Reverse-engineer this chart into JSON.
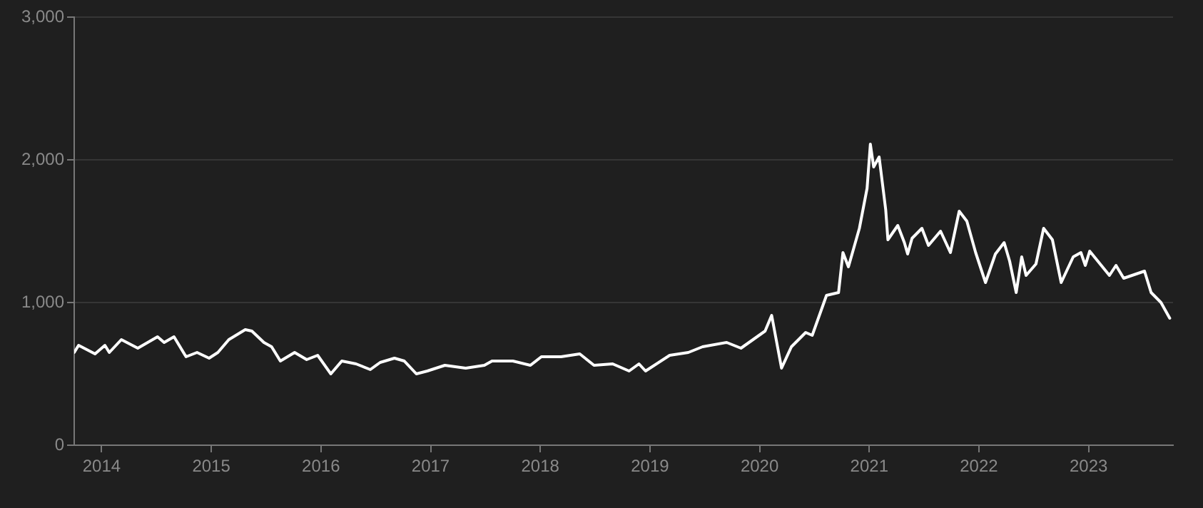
{
  "chart_data": {
    "type": "line",
    "grid": "y",
    "legend": false,
    "marker": "none",
    "line_style": "solid",
    "xlim": [
      2013.75,
      2023.77
    ],
    "xticks": [
      2014,
      2015,
      2016,
      2017,
      2018,
      2019,
      2020,
      2021,
      2022,
      2023
    ],
    "ylim": [
      0,
      3000
    ],
    "yticks": [
      {
        "value": 0,
        "label": "0"
      },
      {
        "value": 1000,
        "label": "1,000"
      },
      {
        "value": 2000,
        "label": "2,000"
      },
      {
        "value": 3000,
        "label": "3,000"
      }
    ],
    "series": [
      {
        "color": "#ffffff",
        "x": [
          2013.75,
          2013.79,
          2013.94,
          2014.03,
          2014.07,
          2014.18,
          2014.33,
          2014.51,
          2014.57,
          2014.66,
          2014.77,
          2014.87,
          2014.98,
          2015.06,
          2015.16,
          2015.31,
          2015.37,
          2015.48,
          2015.55,
          2015.63,
          2015.76,
          2015.87,
          2015.97,
          2016.09,
          2016.19,
          2016.32,
          2016.45,
          2016.54,
          2016.67,
          2016.76,
          2016.87,
          2016.97,
          2017.13,
          2017.32,
          2017.49,
          2017.56,
          2017.75,
          2017.91,
          2018.01,
          2018.19,
          2018.36,
          2018.49,
          2018.66,
          2018.81,
          2018.9,
          2018.96,
          2019.18,
          2019.35,
          2019.48,
          2019.7,
          2019.83,
          2020.05,
          2020.11,
          2020.2,
          2020.29,
          2020.42,
          2020.48,
          2020.61,
          2020.72,
          2020.76,
          2020.81,
          2020.91,
          2020.98,
          2021.01,
          2021.04,
          2021.09,
          2021.15,
          2021.17,
          2021.26,
          2021.32,
          2021.35,
          2021.39,
          2021.48,
          2021.54,
          2021.65,
          2021.74,
          2021.82,
          2021.89,
          2021.97,
          2022.06,
          2022.15,
          2022.23,
          2022.28,
          2022.34,
          2022.39,
          2022.43,
          2022.52,
          2022.59,
          2022.67,
          2022.75,
          2022.86,
          2022.93,
          2022.97,
          2023.01,
          2023.19,
          2023.25,
          2023.32,
          2023.51,
          2023.57,
          2023.66,
          2023.74
        ],
        "values": [
          650,
          700,
          640,
          700,
          650,
          740,
          680,
          760,
          720,
          760,
          620,
          650,
          610,
          650,
          740,
          810,
          800,
          720,
          690,
          590,
          650,
          600,
          630,
          500,
          590,
          570,
          530,
          580,
          610,
          590,
          500,
          520,
          560,
          540,
          560,
          590,
          590,
          560,
          620,
          620,
          640,
          560,
          570,
          520,
          570,
          520,
          630,
          650,
          690,
          720,
          680,
          800,
          910,
          540,
          690,
          790,
          770,
          1050,
          1070,
          1350,
          1250,
          1520,
          1800,
          2110,
          1950,
          2020,
          1650,
          1440,
          1540,
          1420,
          1340,
          1450,
          1520,
          1400,
          1500,
          1350,
          1640,
          1570,
          1350,
          1140,
          1340,
          1420,
          1290,
          1070,
          1320,
          1190,
          1270,
          1520,
          1440,
          1140,
          1320,
          1350,
          1260,
          1360,
          1190,
          1260,
          1170,
          1220,
          1070,
          1000,
          890
        ]
      }
    ]
  }
}
